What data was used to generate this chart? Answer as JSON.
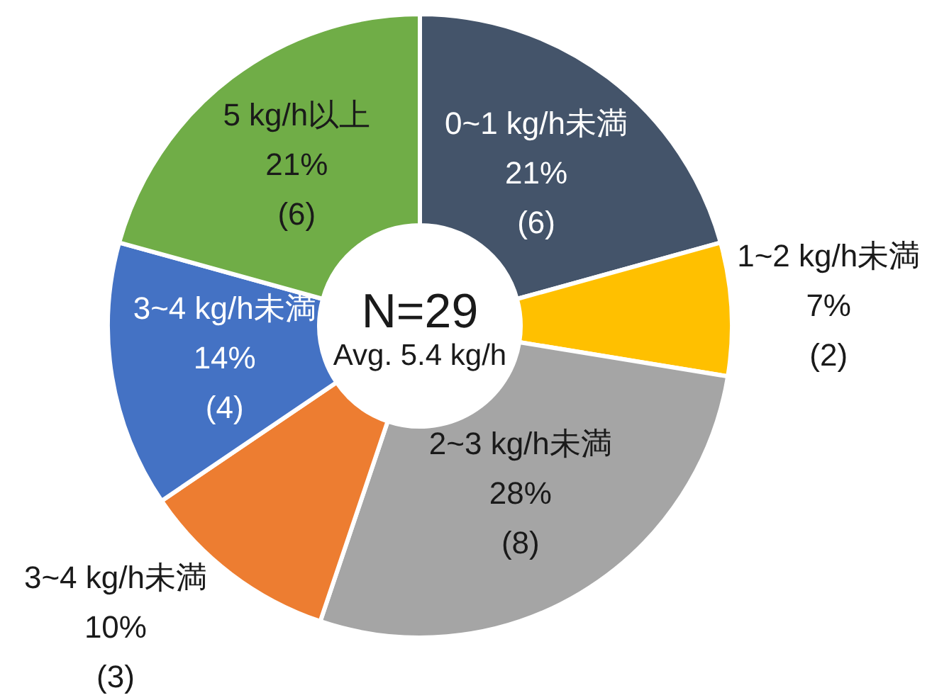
{
  "chart_data": {
    "type": "donut",
    "categories": [
      "0~1 kg/h未満",
      "1~2 kg/h未満",
      "2~3 kg/h未満",
      "3~4 kg/h未満",
      "3~4 kg/h未満",
      "5 kg/h以上"
    ],
    "values": [
      6,
      2,
      8,
      3,
      4,
      6
    ],
    "colors": [
      "#44546a",
      "#ffc000",
      "#a5a5a5",
      "#ed7d31",
      "#4472c4",
      "#70ad47"
    ],
    "value_labels": [
      "21%\n(6)",
      "7%\n(2)",
      "28%\n(8)",
      "10%\n(3)",
      "14%\n(4)",
      "21%\n(6)"
    ],
    "annotations": [
      "N=29",
      "Avg. 5.4 kg/h"
    ]
  }
}
